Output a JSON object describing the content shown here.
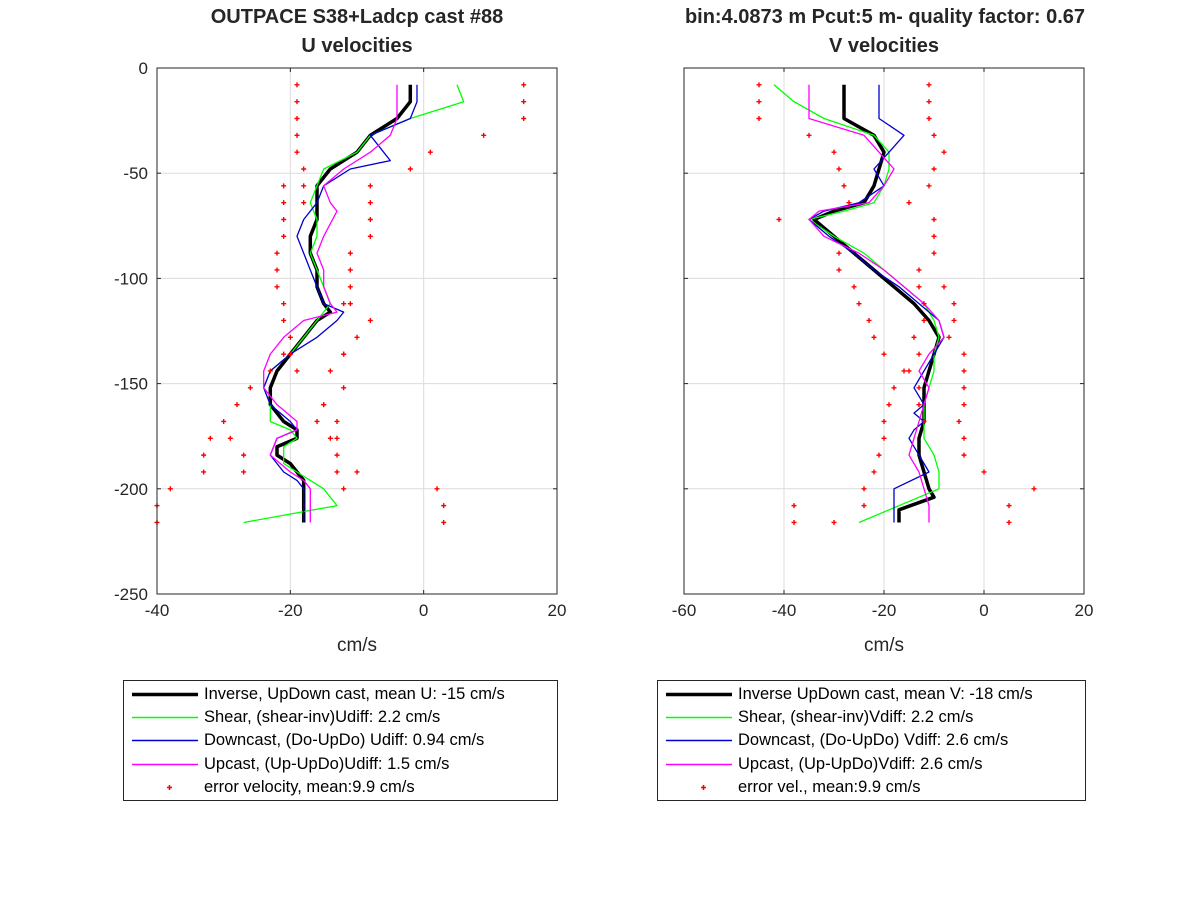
{
  "figure": {
    "left_title": "OUTPACE S38+Ladcp cast #88",
    "right_title": "bin:4.0873 m  Pcut:5 m- quality factor:  0.67"
  },
  "colors": {
    "inverse": "#000000",
    "shear": "#00ff00",
    "downcast": "#0000cc",
    "upcast": "#ff00ff",
    "error": "#ff0000",
    "grid": "#dcdcdc",
    "axis": "#262626"
  },
  "legends": {
    "u": [
      {
        "label": "Inverse, UpDown cast, mean U:  -15 cm/s",
        "series": "inverse"
      },
      {
        "label": "Shear, (shear-inv)Udiff:  2.2 cm/s",
        "series": "shear"
      },
      {
        "label": "Downcast, (Do-UpDo) Udiff:  0.94 cm/s",
        "series": "downcast"
      },
      {
        "label": "Upcast, (Up-UpDo)Udiff:  1.5 cm/s",
        "series": "upcast"
      },
      {
        "label": "error velocity, mean:9.9 cm/s",
        "series": "error"
      }
    ],
    "v": [
      {
        "label": "Inverse UpDown cast, mean V:  -18 cm/s",
        "series": "inverse"
      },
      {
        "label": "Shear, (shear-inv)Vdiff:  2.2 cm/s",
        "series": "shear"
      },
      {
        "label": "Downcast, (Do-UpDo) Vdiff:  2.6 cm/s",
        "series": "downcast"
      },
      {
        "label": "Upcast, (Up-UpDo)Vdiff:  2.6 cm/s",
        "series": "upcast"
      },
      {
        "label": "error vel., mean:9.9 cm/s",
        "series": "error"
      }
    ]
  },
  "chart_data": [
    {
      "type": "line",
      "title": "U velocities",
      "xlabel": "cm/s",
      "ylabel": "",
      "xlim": [
        -40,
        20
      ],
      "ylim": [
        -250,
        0
      ],
      "xticks": [
        -40,
        -20,
        0,
        20
      ],
      "yticks": [
        0,
        -50,
        -100,
        -150,
        -200,
        -250
      ],
      "grid": true,
      "series": [
        {
          "key": "inverse",
          "x": [
            -2,
            -2,
            -4,
            -8,
            -10,
            -14,
            -16,
            -16,
            -16,
            -17,
            -17,
            -16,
            -16,
            -15,
            -14,
            -16,
            -18,
            -20,
            -22,
            -23,
            -23,
            -21,
            -19,
            -19,
            -22,
            -22,
            -20,
            -19,
            -18,
            -18,
            -18,
            -18
          ],
          "y": [
            -8,
            -16,
            -24,
            -32,
            -40,
            -48,
            -56,
            -64,
            -72,
            -80,
            -88,
            -96,
            -104,
            -112,
            -116,
            -120,
            -128,
            -136,
            -144,
            -152,
            -160,
            -168,
            -172,
            -176,
            -180,
            -184,
            -188,
            -192,
            -196,
            -200,
            -208,
            -216
          ]
        },
        {
          "key": "shear",
          "x": [
            5,
            6,
            -2,
            -8,
            -10,
            -15,
            -16,
            -17,
            -16,
            -16,
            -17,
            -16,
            -15,
            -14,
            -16,
            -18,
            -20,
            -23,
            -24,
            -23,
            -23,
            -20,
            -19,
            -21,
            -21,
            -19,
            -17,
            -15,
            -13,
            -27
          ],
          "y": [
            -8,
            -16,
            -24,
            -32,
            -40,
            -48,
            -56,
            -64,
            -72,
            -80,
            -88,
            -96,
            -104,
            -112,
            -120,
            -128,
            -136,
            -144,
            -152,
            -160,
            -168,
            -172,
            -176,
            -180,
            -188,
            -192,
            -196,
            -200,
            -208,
            -216
          ]
        },
        {
          "key": "downcast",
          "x": [
            -1,
            -1,
            -2,
            -8,
            -5,
            -11,
            -15,
            -16,
            -18,
            -19,
            -18,
            -17,
            -16,
            -15,
            -12,
            -13,
            -16,
            -20,
            -23,
            -24,
            -23,
            -20,
            -19,
            -22,
            -23,
            -21,
            -19,
            -18,
            -18
          ],
          "y": [
            -8,
            -16,
            -24,
            -32,
            -44,
            -48,
            -56,
            -64,
            -72,
            -80,
            -88,
            -96,
            -104,
            -112,
            -116,
            -120,
            -128,
            -136,
            -144,
            -152,
            -160,
            -168,
            -172,
            -176,
            -184,
            -192,
            -196,
            -200,
            -216
          ]
        },
        {
          "key": "upcast",
          "x": [
            -4,
            -4,
            -4,
            -5,
            -8,
            -12,
            -15,
            -14,
            -13,
            -15,
            -16,
            -15,
            -15,
            -14,
            -13,
            -18,
            -21,
            -23,
            -24,
            -24,
            -22,
            -19,
            -19,
            -22,
            -23,
            -20,
            -18,
            -17,
            -17
          ],
          "y": [
            -8,
            -16,
            -24,
            -32,
            -40,
            -48,
            -56,
            -64,
            -68,
            -80,
            -88,
            -96,
            -104,
            -112,
            -116,
            -120,
            -128,
            -136,
            -144,
            -152,
            -160,
            -168,
            -172,
            -176,
            -184,
            -192,
            -196,
            -200,
            -216
          ]
        },
        {
          "key": "error",
          "mode": "markers",
          "x": [
            -19,
            -19,
            -19,
            -19,
            -19,
            -18,
            -18,
            -18,
            -21,
            -21,
            -21,
            -21,
            -22,
            -22,
            -22,
            -21,
            -21,
            -20,
            -20,
            -19,
            -21,
            -23,
            -26,
            -28,
            -30,
            -29,
            -27,
            -27,
            -32,
            -33,
            -33,
            -38,
            -40,
            -40,
            15,
            15,
            15,
            9,
            1,
            -2,
            -8,
            -8,
            -8,
            -8,
            -11,
            -11,
            -11,
            -11,
            -12,
            -8,
            -10,
            -12,
            -14,
            -12,
            -15,
            -16,
            -14,
            -13,
            -13,
            -12,
            -12,
            -15,
            -13,
            -13,
            -10,
            2,
            3,
            3
          ],
          "y": [
            -8,
            -16,
            -24,
            -32,
            -40,
            -48,
            -56,
            -64,
            -56,
            -64,
            -72,
            -80,
            -88,
            -96,
            -104,
            -112,
            -120,
            -128,
            -136,
            -144,
            -136,
            -144,
            -152,
            -160,
            -168,
            -176,
            -184,
            -192,
            -176,
            -184,
            -192,
            -200,
            -208,
            -216,
            -8,
            -16,
            -24,
            -32,
            -40,
            -48,
            -56,
            -64,
            -72,
            -80,
            -88,
            -96,
            -104,
            -112,
            -112,
            -120,
            -128,
            -136,
            -144,
            -152,
            -160,
            -168,
            -176,
            -184,
            -192,
            -200,
            -136,
            -160,
            -168,
            -176,
            -192,
            -200,
            -208,
            -216
          ]
        }
      ]
    },
    {
      "type": "line",
      "title": "V velocities",
      "xlabel": "cm/s",
      "ylabel": "",
      "xlim": [
        -60,
        20
      ],
      "ylim": [
        -250,
        0
      ],
      "xticks": [
        -60,
        -40,
        -20,
        0,
        20
      ],
      "yticks": [
        0,
        -50,
        -100,
        -150,
        -200,
        -250
      ],
      "grid": true,
      "series": [
        {
          "key": "inverse",
          "x": [
            -28,
            -28,
            -28,
            -22,
            -20,
            -21,
            -22,
            -24,
            -30,
            -34,
            -30,
            -26,
            -22,
            -18,
            -14,
            -11,
            -9,
            -10,
            -11,
            -12,
            -12,
            -12,
            -13,
            -13,
            -12,
            -11,
            -10,
            -17,
            -17
          ],
          "y": [
            -8,
            -16,
            -24,
            -32,
            -40,
            -48,
            -56,
            -64,
            -68,
            -72,
            -80,
            -88,
            -96,
            -104,
            -112,
            -120,
            -128,
            -136,
            -144,
            -152,
            -160,
            -168,
            -176,
            -184,
            -192,
            -200,
            -204,
            -210,
            -216
          ]
        },
        {
          "key": "shear",
          "x": [
            -42,
            -38,
            -32,
            -22,
            -19,
            -19,
            -20,
            -22,
            -28,
            -35,
            -30,
            -24,
            -20,
            -16,
            -12,
            -10,
            -9,
            -10,
            -10,
            -11,
            -12,
            -12,
            -12,
            -10,
            -9,
            -9,
            -25
          ],
          "y": [
            -8,
            -16,
            -24,
            -32,
            -40,
            -48,
            -56,
            -64,
            -68,
            -72,
            -80,
            -88,
            -96,
            -104,
            -112,
            -120,
            -128,
            -136,
            -144,
            -152,
            -160,
            -168,
            -176,
            -184,
            -192,
            -200,
            -216
          ]
        },
        {
          "key": "downcast",
          "x": [
            -21,
            -21,
            -21,
            -16,
            -19,
            -22,
            -20,
            -25,
            -32,
            -35,
            -31,
            -26,
            -22,
            -17,
            -13,
            -9,
            -8,
            -10,
            -12,
            -14,
            -12,
            -14,
            -12,
            -14,
            -15,
            -13,
            -11,
            -18,
            -18
          ],
          "y": [
            -8,
            -16,
            -24,
            -32,
            -40,
            -48,
            -56,
            -64,
            -68,
            -72,
            -80,
            -88,
            -96,
            -104,
            -112,
            -120,
            -128,
            -136,
            -144,
            -152,
            -160,
            -164,
            -168,
            -172,
            -176,
            -184,
            -192,
            -200,
            -216
          ]
        },
        {
          "key": "upcast",
          "x": [
            -35,
            -35,
            -35,
            -24,
            -21,
            -18,
            -20,
            -23,
            -33,
            -35,
            -32,
            -25,
            -20,
            -16,
            -12,
            -9,
            -8,
            -11,
            -13,
            -11,
            -12,
            -13,
            -14,
            -15,
            -13,
            -12,
            -11,
            -11
          ],
          "y": [
            -8,
            -16,
            -24,
            -32,
            -40,
            -48,
            -56,
            -64,
            -68,
            -72,
            -80,
            -88,
            -96,
            -104,
            -112,
            -120,
            -128,
            -136,
            -144,
            -152,
            -160,
            -168,
            -176,
            -184,
            -192,
            -200,
            -208,
            -216
          ]
        },
        {
          "key": "error",
          "mode": "markers",
          "x": [
            -45,
            -45,
            -45,
            -35,
            -30,
            -29,
            -28,
            -27,
            -41,
            -29,
            -29,
            -26,
            -25,
            -23,
            -22,
            -20,
            -16,
            -18,
            -19,
            -20,
            -20,
            -21,
            -22,
            -24,
            -24,
            -30,
            -38,
            -38,
            -11,
            -11,
            -11,
            -10,
            -8,
            -10,
            -11,
            -15,
            -10,
            -10,
            -10,
            -13,
            -13,
            -12,
            -12,
            -14,
            -13,
            -15,
            -13,
            -13,
            -12,
            -8,
            -6,
            -6,
            -7,
            -4,
            -4,
            -4,
            -4,
            -5,
            -4,
            -4,
            0,
            10,
            5,
            5
          ],
          "y": [
            -8,
            -16,
            -24,
            -32,
            -40,
            -48,
            -56,
            -64,
            -72,
            -88,
            -96,
            -104,
            -112,
            -120,
            -128,
            -136,
            -144,
            -152,
            -160,
            -168,
            -176,
            -184,
            -192,
            -200,
            -208,
            -216,
            -208,
            -216,
            -8,
            -16,
            -24,
            -32,
            -40,
            -48,
            -56,
            -64,
            -72,
            -80,
            -88,
            -96,
            -104,
            -112,
            -120,
            -128,
            -136,
            -144,
            -152,
            -160,
            -168,
            -104,
            -112,
            -120,
            -128,
            -136,
            -144,
            -152,
            -160,
            -168,
            -176,
            -184,
            -192,
            -200,
            -208,
            -216
          ]
        }
      ]
    }
  ]
}
